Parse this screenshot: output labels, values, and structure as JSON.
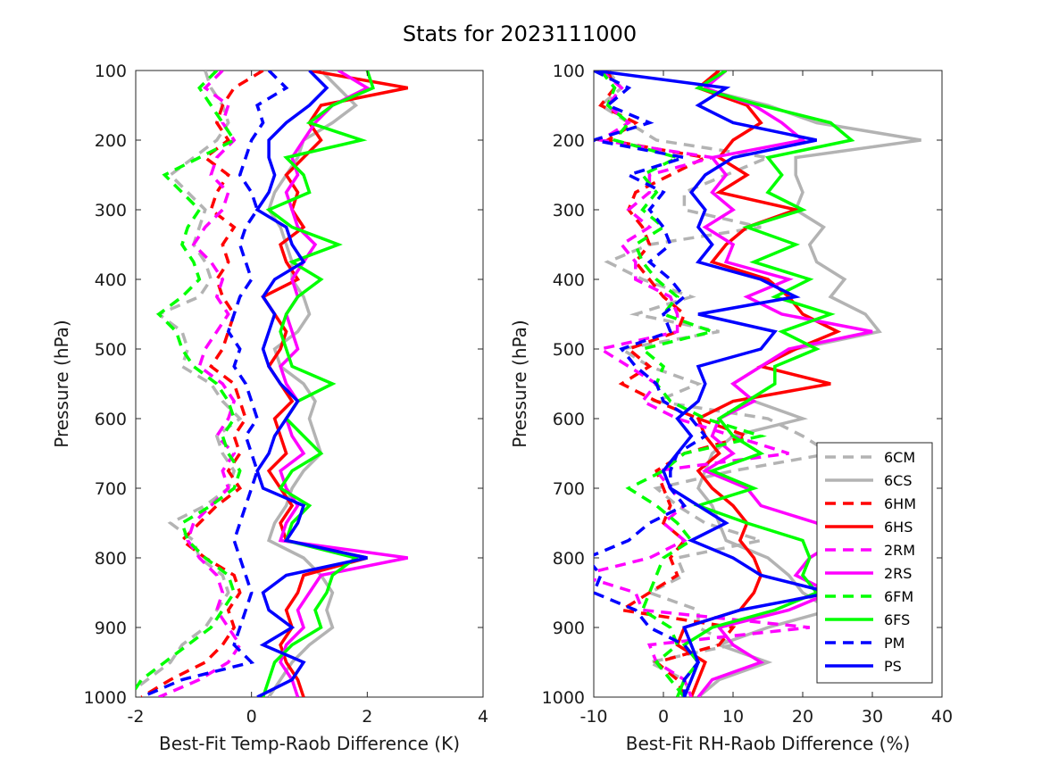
{
  "figure": {
    "title": "Stats for 2023111000"
  },
  "legend": {
    "placement": "lower-right of right panel",
    "entries": [
      {
        "label": "6CM",
        "color": "#b3b3b3",
        "dash": true
      },
      {
        "label": "6CS",
        "color": "#b3b3b3",
        "dash": false
      },
      {
        "label": "6HM",
        "color": "#ff0000",
        "dash": true
      },
      {
        "label": "6HS",
        "color": "#ff0000",
        "dash": false
      },
      {
        "label": "2RM",
        "color": "#ff00ff",
        "dash": true
      },
      {
        "label": "2RS",
        "color": "#ff00ff",
        "dash": false
      },
      {
        "label": "6FM",
        "color": "#00ff00",
        "dash": true
      },
      {
        "label": "6FS",
        "color": "#00ff00",
        "dash": false
      },
      {
        "label": "PM",
        "color": "#0000ff",
        "dash": true
      },
      {
        "label": "PS",
        "color": "#0000ff",
        "dash": false
      }
    ]
  },
  "chart_data": [
    {
      "type": "line",
      "orientation": "vertical-profile",
      "xlabel": "Best-Fit Temp-Raob Difference (K)",
      "ylabel": "Pressure (hPa)",
      "xlim": [
        -2,
        4
      ],
      "ylim": [
        1000,
        100
      ],
      "xticks": [
        "-2",
        "0",
        "2",
        "4"
      ],
      "yticks": [
        "100",
        "200",
        "300",
        "400",
        "500",
        "600",
        "700",
        "800",
        "900",
        "1000"
      ],
      "pressure": [
        100,
        125,
        150,
        175,
        200,
        225,
        250,
        275,
        300,
        325,
        350,
        375,
        400,
        425,
        450,
        475,
        500,
        525,
        550,
        575,
        600,
        625,
        650,
        675,
        700,
        725,
        750,
        775,
        800,
        825,
        850,
        875,
        900,
        925,
        950,
        975,
        1000
      ],
      "series": [
        {
          "name": "6CM",
          "values": [
            -0.8,
            -0.7,
            -0.5,
            -0.4,
            -0.6,
            -1.0,
            -1.4,
            -1.1,
            -0.8,
            -0.9,
            -1.0,
            -0.8,
            -0.7,
            -0.9,
            -1.6,
            -1.2,
            -1.1,
            -1.2,
            -0.7,
            -0.5,
            -0.2,
            -0.6,
            -0.5,
            -0.3,
            -0.4,
            -0.8,
            -1.4,
            -1.0,
            -0.9,
            -0.5,
            -0.4,
            -0.6,
            -0.8,
            -1.2,
            -1.4,
            -1.8,
            -2.2
          ]
        },
        {
          "name": "6CS",
          "values": [
            1.2,
            1.5,
            1.8,
            1.4,
            0.9,
            0.8,
            0.6,
            0.4,
            0.3,
            0.5,
            0.6,
            0.7,
            0.7,
            0.9,
            1.0,
            0.8,
            0.4,
            0.5,
            0.9,
            1.1,
            1.0,
            1.1,
            1.2,
            0.9,
            0.7,
            0.6,
            0.4,
            0.3,
            0.9,
            1.2,
            1.4,
            1.3,
            1.4,
            1.0,
            0.7,
            0.5,
            0.3
          ]
        },
        {
          "name": "6HM",
          "values": [
            0.2,
            -0.3,
            -0.5,
            -0.6,
            -0.4,
            -0.8,
            -0.4,
            -0.6,
            -0.7,
            -0.3,
            -0.5,
            -0.4,
            -0.6,
            -0.5,
            -0.3,
            -0.4,
            -0.5,
            -0.7,
            -0.3,
            -0.2,
            -0.1,
            -0.3,
            -0.2,
            -0.4,
            -0.2,
            -0.6,
            -0.9,
            -1.2,
            -0.8,
            -0.3,
            -0.2,
            -0.4,
            -0.3,
            -0.5,
            -0.8,
            -1.4,
            -1.9
          ]
        },
        {
          "name": "6HS",
          "values": [
            1.0,
            2.7,
            1.2,
            1.0,
            1.2,
            0.9,
            0.6,
            0.8,
            0.7,
            0.9,
            0.5,
            0.6,
            0.8,
            0.2,
            0.4,
            0.6,
            0.5,
            0.3,
            0.5,
            0.7,
            0.4,
            0.5,
            0.6,
            0.3,
            0.5,
            0.7,
            0.5,
            0.6,
            2.0,
            0.9,
            0.8,
            0.6,
            0.7,
            0.5,
            0.6,
            0.8,
            0.9
          ]
        },
        {
          "name": "2RM",
          "values": [
            -0.5,
            -0.8,
            -0.4,
            -0.5,
            -0.3,
            -0.6,
            -0.7,
            -0.4,
            -0.5,
            -0.8,
            -1.0,
            -0.7,
            -0.5,
            -0.6,
            -0.4,
            -0.6,
            -0.8,
            -0.9,
            -0.5,
            -0.3,
            -0.4,
            -0.6,
            -0.3,
            -0.5,
            -0.4,
            -0.7,
            -1.0,
            -1.1,
            -0.9,
            -0.6,
            -0.5,
            -0.6,
            -0.4,
            -0.2,
            -0.4,
            -0.9,
            -1.6
          ]
        },
        {
          "name": "2RS",
          "values": [
            1.5,
            2.0,
            1.4,
            1.1,
            0.9,
            0.7,
            0.8,
            0.6,
            0.7,
            0.8,
            1.1,
            0.9,
            0.7,
            0.8,
            0.6,
            0.7,
            0.8,
            0.5,
            0.6,
            0.8,
            0.6,
            0.7,
            0.9,
            0.5,
            0.6,
            0.8,
            0.6,
            0.5,
            2.7,
            1.2,
            1.0,
            0.8,
            0.9,
            0.6,
            0.5,
            0.7,
            0.8
          ]
        },
        {
          "name": "6FM",
          "values": [
            -0.6,
            -0.9,
            -0.7,
            -0.5,
            -0.3,
            -0.9,
            -1.5,
            -1.2,
            -0.9,
            -1.1,
            -1.2,
            -1.0,
            -0.9,
            -1.2,
            -1.6,
            -1.3,
            -1.2,
            -1.0,
            -0.6,
            -0.4,
            -0.3,
            -0.5,
            -0.4,
            -0.2,
            -0.3,
            -0.7,
            -1.2,
            -1.1,
            -0.8,
            -0.4,
            -0.3,
            -0.5,
            -0.7,
            -1.1,
            -1.5,
            -1.9,
            -2.1
          ]
        },
        {
          "name": "6FS",
          "values": [
            2.0,
            2.1,
            1.4,
            1.0,
            1.9,
            0.6,
            0.9,
            1.0,
            0.3,
            0.7,
            1.5,
            0.7,
            1.2,
            0.8,
            0.6,
            0.5,
            0.6,
            0.7,
            1.4,
            0.8,
            0.6,
            0.9,
            1.2,
            0.7,
            0.5,
            1.0,
            0.7,
            0.6,
            1.8,
            1.4,
            1.3,
            1.1,
            1.2,
            0.7,
            0.4,
            0.3,
            0.2
          ]
        },
        {
          "name": "PM",
          "values": [
            0.3,
            0.6,
            0.1,
            0.2,
            0.0,
            -0.1,
            -0.2,
            0.0,
            0.1,
            -0.1,
            -0.2,
            -0.1,
            0.0,
            -0.2,
            -0.3,
            -0.4,
            -0.2,
            -0.3,
            -0.1,
            0.0,
            0.1,
            -0.1,
            0.0,
            0.1,
            0.0,
            -0.1,
            -0.2,
            -0.3,
            -0.2,
            -0.1,
            0.0,
            -0.1,
            -0.2,
            -0.3,
            0.0,
            -1.2,
            -1.9
          ]
        },
        {
          "name": "PS",
          "values": [
            1.0,
            1.3,
            1.0,
            0.6,
            0.3,
            0.3,
            0.4,
            0.3,
            0.1,
            0.6,
            0.7,
            0.9,
            0.4,
            0.2,
            0.4,
            0.3,
            0.2,
            0.3,
            0.5,
            0.8,
            0.6,
            0.4,
            0.3,
            0.1,
            0.2,
            0.9,
            0.8,
            0.6,
            2.0,
            0.6,
            0.2,
            0.3,
            0.7,
            0.2,
            0.9,
            0.7,
            0.1
          ]
        }
      ]
    },
    {
      "type": "line",
      "orientation": "vertical-profile",
      "xlabel": "Best-Fit RH-Raob Difference (%)",
      "ylabel": "Pressure (hPa)",
      "xlim": [
        -10,
        40
      ],
      "ylim": [
        1000,
        100
      ],
      "xticks": [
        "-10",
        "0",
        "10",
        "20",
        "30",
        "40"
      ],
      "yticks": [
        "100",
        "200",
        "300",
        "400",
        "500",
        "600",
        "700",
        "800",
        "900",
        "1000"
      ],
      "pressure": [
        100,
        125,
        150,
        175,
        200,
        225,
        250,
        275,
        300,
        325,
        350,
        375,
        400,
        425,
        450,
        475,
        500,
        525,
        550,
        575,
        600,
        625,
        650,
        675,
        700,
        725,
        750,
        775,
        800,
        825,
        850,
        875,
        900,
        925,
        950,
        975,
        1000
      ],
      "series": [
        {
          "name": "6CM",
          "values": [
            -8,
            -6,
            -9,
            -5,
            -1,
            15,
            9,
            3,
            3,
            14,
            -2,
            -8,
            -3,
            4,
            -4,
            8,
            -6,
            -2,
            5,
            -1,
            15,
            20,
            24,
            10,
            -1,
            2,
            6,
            14,
            2,
            3,
            -2,
            5,
            5,
            10,
            -2,
            3,
            4
          ]
        },
        {
          "name": "6CS",
          "values": [
            9,
            5,
            15,
            22,
            37,
            19,
            19,
            20,
            19,
            23,
            21,
            22,
            26,
            24,
            29,
            31,
            19,
            14,
            10,
            13,
            20,
            10,
            7,
            6,
            5,
            7,
            8,
            9,
            15,
            18,
            20,
            24,
            15,
            8,
            15,
            8,
            5
          ]
        },
        {
          "name": "6HM",
          "values": [
            -8,
            -7,
            -9,
            -4,
            -8,
            6,
            1,
            -4,
            -5,
            -3,
            -2,
            -4,
            -2,
            0,
            3,
            2,
            -5,
            -2,
            -6,
            -1,
            5,
            12,
            3,
            -1,
            0,
            1,
            0,
            3,
            1,
            2,
            -2,
            -6,
            10,
            8,
            -1,
            2,
            3
          ]
        },
        {
          "name": "6HS",
          "values": [
            8,
            5,
            12,
            14,
            10,
            8,
            12,
            8,
            19,
            12,
            9,
            7,
            15,
            18,
            20,
            25,
            19,
            14,
            24,
            10,
            5,
            6,
            8,
            5,
            7,
            10,
            12,
            11,
            13,
            14,
            13,
            11,
            3,
            2,
            6,
            5,
            4
          ]
        },
        {
          "name": "2RM",
          "values": [
            -9,
            -6,
            -8,
            -5,
            -9,
            7,
            -2,
            -2,
            -5,
            -2,
            -6,
            -4,
            -4,
            1,
            2,
            2,
            -9,
            -5,
            -1,
            -3,
            2,
            10,
            18,
            -1,
            1,
            3,
            0,
            3,
            -2,
            -12,
            -4,
            -3,
            21,
            -2,
            -1,
            3,
            4
          ]
        },
        {
          "name": "2RS",
          "values": [
            9,
            6,
            13,
            17,
            20,
            7,
            9,
            7,
            10,
            6,
            10,
            9,
            18,
            12,
            17,
            30,
            18,
            14,
            10,
            13,
            8,
            7,
            10,
            6,
            12,
            14,
            22,
            25,
            21,
            19,
            24,
            18,
            8,
            10,
            14,
            7,
            5
          ]
        },
        {
          "name": "6FM",
          "values": [
            -9,
            -7,
            -8,
            -5,
            -7,
            2,
            -3,
            -1,
            -3,
            0,
            -4,
            -3,
            -1,
            2,
            0,
            7,
            -3,
            0,
            -1,
            1,
            6,
            14,
            3,
            0,
            -5,
            -1,
            2,
            4,
            0,
            -1,
            -2,
            -3,
            1,
            2,
            -1,
            1,
            3
          ]
        },
        {
          "name": "6FS",
          "values": [
            9,
            5,
            14,
            24,
            27,
            15,
            17,
            15,
            20,
            12,
            19,
            13,
            21,
            16,
            24,
            17,
            22,
            16,
            16,
            12,
            8,
            10,
            14,
            7,
            13,
            5,
            12,
            20,
            21,
            20,
            22,
            16,
            7,
            3,
            5,
            3,
            2
          ]
        },
        {
          "name": "PM",
          "values": [
            -10,
            -5,
            -8,
            -2,
            -10,
            3,
            -5,
            0,
            -2,
            0,
            1,
            -2,
            1,
            3,
            0,
            1,
            -6,
            -4,
            -1,
            0,
            4,
            6,
            2,
            1,
            1,
            3,
            -2,
            -5,
            -11,
            -9,
            -10,
            -4,
            -2,
            3,
            5,
            3,
            3
          ]
        },
        {
          "name": "PS",
          "values": [
            -10,
            9,
            5,
            10,
            22,
            10,
            6,
            4,
            6,
            5,
            7,
            5,
            14,
            19,
            5,
            16,
            14,
            5,
            6,
            5,
            2,
            4,
            2,
            0,
            1,
            5,
            9,
            4,
            10,
            14,
            24,
            11,
            3,
            4,
            5,
            4,
            3
          ]
        }
      ]
    }
  ]
}
